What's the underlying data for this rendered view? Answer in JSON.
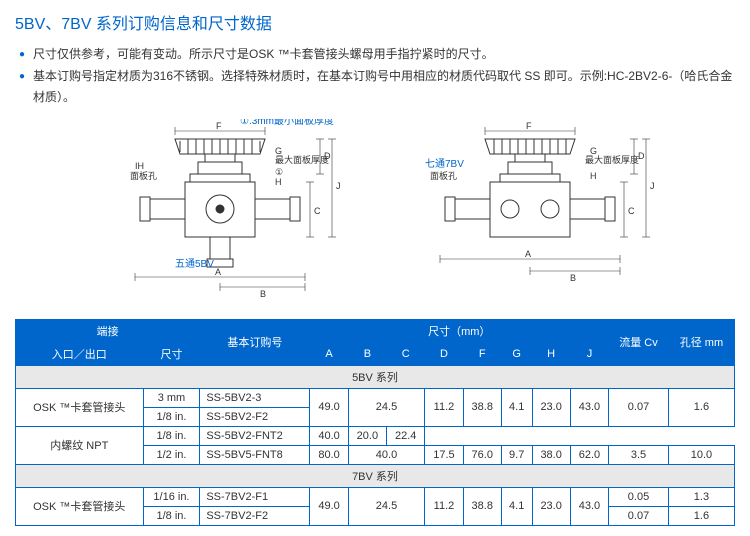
{
  "title": "5BV、7BV 系列订购信息和尺寸数据",
  "bullets": [
    "尺寸仅供参考，可能有变动。所示尺寸是OSK ™卡套管接头螺母用手指拧紧时的尺寸。",
    "基本订购号指定材质为316不锈钢。选择特殊材质时，在基本订购号中用相应的材质代码取代 SS 即可。示例:HC-2BV2-6-（哈氏合金材质）。"
  ],
  "diagrams": {
    "left": {
      "caption": "五通5BV",
      "labels": {
        "top_note": "①.3mm最小面板厚度",
        "panel_hole": "面板孔",
        "max_panel": "最大面板厚度",
        "f": "F",
        "g": "G",
        "h": "H",
        "ih": "IH",
        "j": "J",
        "d": "D",
        "c": "C",
        "a": "A",
        "b": "B",
        "circle1": "①"
      }
    },
    "right": {
      "caption": "七通7BV",
      "labels": {
        "panel_hole": "面板孔",
        "max_panel": "最大面板厚度",
        "f": "F",
        "g": "G",
        "h": "H",
        "j": "J",
        "d": "D",
        "c": "C",
        "a": "A",
        "b": "B",
        "side": "七通7BV"
      }
    }
  },
  "table": {
    "header_group": {
      "conn": "端接",
      "basic": "基本订购号",
      "dim": "尺寸（mm）",
      "flow": "流量 Cv",
      "bore": "孔径 mm"
    },
    "header_sub": {
      "inout": "入口／出口",
      "size": "尺寸",
      "a": "A",
      "b": "B",
      "c": "C",
      "d": "D",
      "f": "F",
      "g": "G",
      "h": "H",
      "j": "J"
    },
    "sections": [
      {
        "name": "5BV 系列",
        "rows": [
          {
            "conn": "OSK ™卡套管接头",
            "conn_rowspan": 2,
            "size": "3 mm",
            "part": "SS-5BV2-3",
            "a": "49.0",
            "a_rowspan": 2,
            "b": "24.5",
            "b_colspan": 2,
            "b_rowspan": 2,
            "c": "",
            "d": "11.2",
            "d_rowspan": 2,
            "f": "38.8",
            "f_rowspan": 2,
            "g": "4.1",
            "g_rowspan": 2,
            "h": "23.0",
            "h_rowspan": 2,
            "j": "43.0",
            "j_rowspan": 2,
            "cv": "0.07",
            "cv_rowspan": 2,
            "bore": "1.6",
            "bore_rowspan": 2
          },
          {
            "size": "1/8 in.",
            "part": "SS-5BV2-F2"
          },
          {
            "conn": "内螺纹 NPT",
            "conn_rowspan": 2,
            "size": "1/8 in.",
            "part": "SS-5BV2-FNT2",
            "a": "40.0",
            "b": "20.0",
            "c": "22.4"
          },
          {
            "size": "1/2 in.",
            "part": "SS-5BV5-FNT8",
            "a": "80.0",
            "b": "40.0",
            "b_colspan": 2,
            "c": "",
            "d": "17.5",
            "f": "76.0",
            "g": "9.7",
            "h": "38.0",
            "j": "62.0",
            "cv": "3.5",
            "bore": "10.0"
          }
        ]
      },
      {
        "name": "7BV 系列",
        "rows": [
          {
            "conn": "OSK ™卡套管接头",
            "conn_rowspan": 2,
            "size": "1/16 in.",
            "part": "SS-7BV2-F1",
            "a": "49.0",
            "a_rowspan": 2,
            "b": "24.5",
            "b_colspan": 2,
            "b_rowspan": 2,
            "c": "",
            "d": "11.2",
            "d_rowspan": 2,
            "f": "38.8",
            "f_rowspan": 2,
            "g": "4.1",
            "g_rowspan": 2,
            "h": "23.0",
            "h_rowspan": 2,
            "j": "43.0",
            "j_rowspan": 2,
            "cv": "0.05",
            "bore": "1.3"
          },
          {
            "size": "1/8 in.",
            "part": "SS-7BV2-F2",
            "cv": "0.07",
            "bore": "1.6"
          }
        ]
      }
    ]
  }
}
